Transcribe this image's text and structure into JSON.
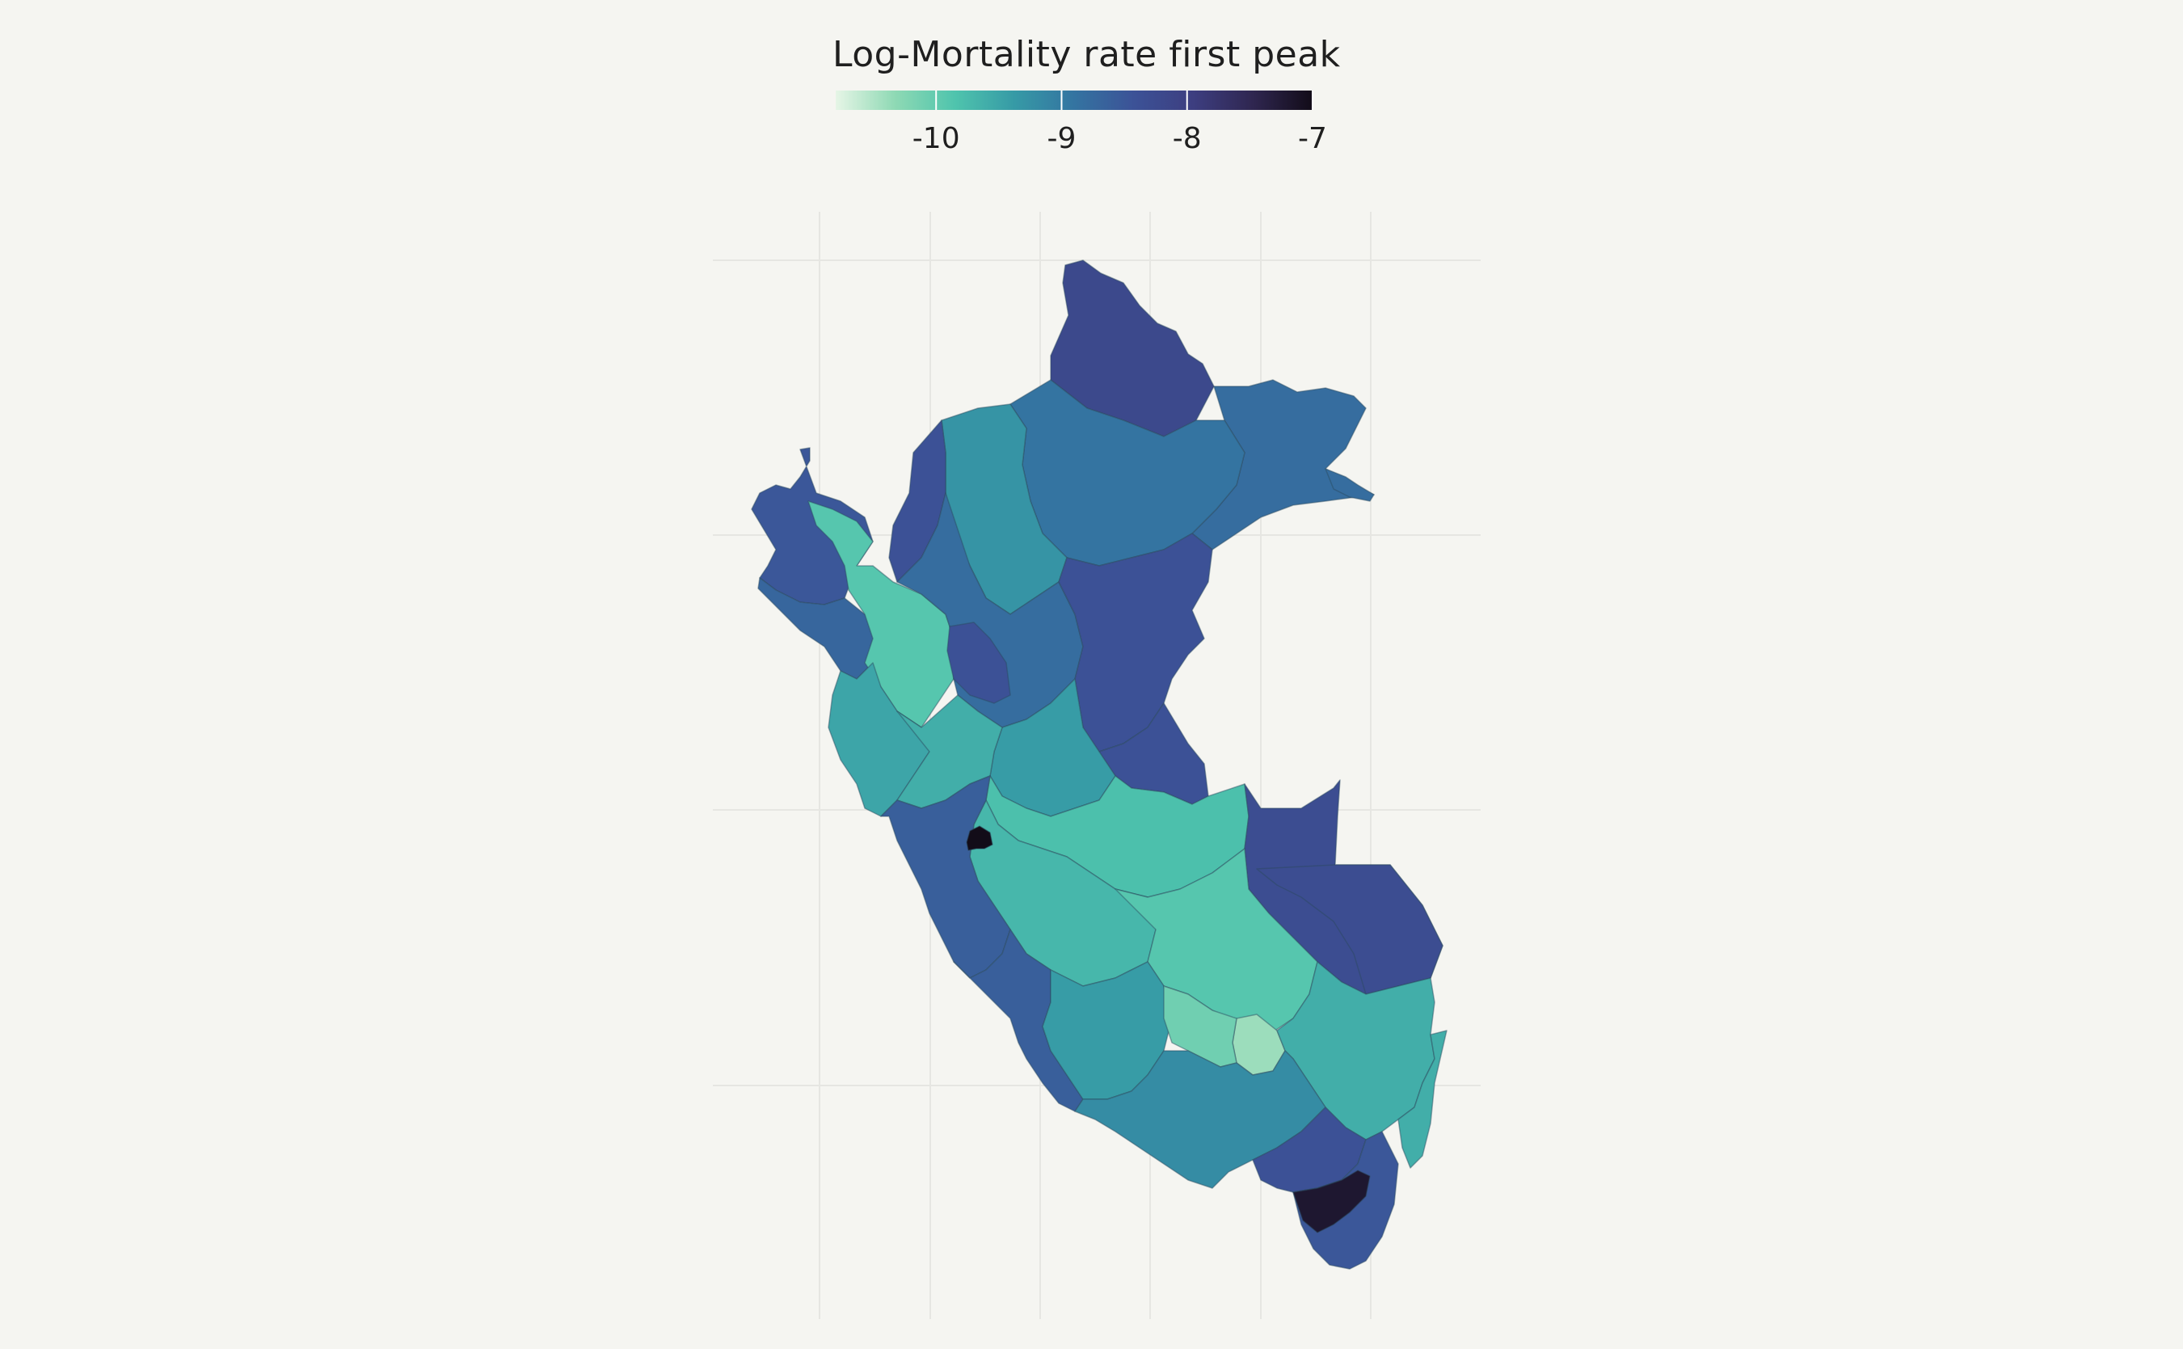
{
  "legend": {
    "title": "Log-Mortality rate first peak",
    "ticks": [
      {
        "value": -10,
        "label": "-10"
      },
      {
        "value": -9,
        "label": "-9"
      },
      {
        "value": -8,
        "label": "-8"
      },
      {
        "value": -7,
        "label": "-7"
      }
    ],
    "range": [
      -10.8,
      -7.0
    ],
    "colorscale": [
      "#e6f5e6",
      "#8ed9b4",
      "#4fc4ad",
      "#369aa6",
      "#3474a1",
      "#3c5297",
      "#3d3e80",
      "#2f2650",
      "#120c18"
    ]
  },
  "map": {
    "regions": [
      {
        "id": "loreto-north",
        "value": -8.2
      },
      {
        "id": "loreto-east",
        "value": -8.8
      },
      {
        "id": "loreto-center",
        "value": -8.9
      },
      {
        "id": "loreto-west",
        "value": -9.3
      },
      {
        "id": "amazonas",
        "value": -8.4
      },
      {
        "id": "tumbes",
        "value": -8.5
      },
      {
        "id": "piura",
        "value": -8.7
      },
      {
        "id": "cajamarca",
        "value": -9.9
      },
      {
        "id": "san-martin",
        "value": -8.8
      },
      {
        "id": "la-libertad",
        "value": -9.5
      },
      {
        "id": "ucayali",
        "value": -8.4
      },
      {
        "id": "ucayali-south",
        "value": -8.9
      },
      {
        "id": "huanuco",
        "value": -9.4
      },
      {
        "id": "ancash",
        "value": -9.6
      },
      {
        "id": "pasco",
        "value": -9.8
      },
      {
        "id": "junin",
        "value": -9.7
      },
      {
        "id": "lima",
        "value": -8.6
      },
      {
        "id": "lima-metro",
        "value": -7.0
      },
      {
        "id": "madre-de-dios",
        "value": -8.3
      },
      {
        "id": "cusco",
        "value": -9.9
      },
      {
        "id": "puno",
        "value": -9.6
      },
      {
        "id": "ica",
        "value": -8.6
      },
      {
        "id": "ayacucho",
        "value": -9.4
      },
      {
        "id": "apurimac",
        "value": -10.1
      },
      {
        "id": "arequipa",
        "value": -9.2
      },
      {
        "id": "moquegua",
        "value": -8.4
      },
      {
        "id": "tacna",
        "value": -8.5
      },
      {
        "id": "tacna-province",
        "value": -7.2
      },
      {
        "id": "cusco-east",
        "value": -10.4
      }
    ]
  }
}
